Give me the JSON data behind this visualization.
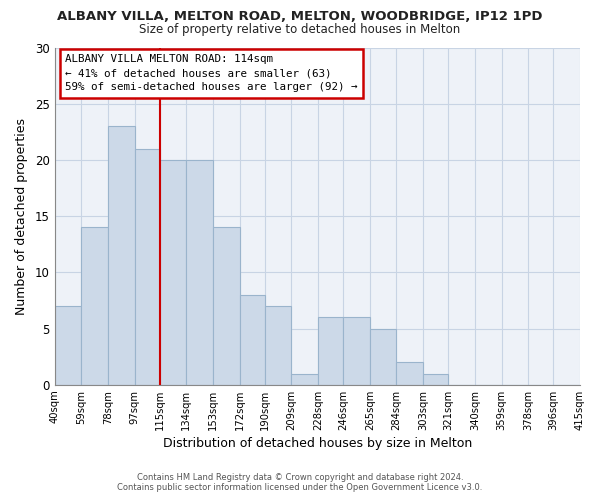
{
  "title": "ALBANY VILLA, MELTON ROAD, MELTON, WOODBRIDGE, IP12 1PD",
  "subtitle": "Size of property relative to detached houses in Melton",
  "xlabel": "Distribution of detached houses by size in Melton",
  "ylabel": "Number of detached properties",
  "bar_color": "#ccd9e8",
  "bar_edge_color": "#9ab4cc",
  "bins": [
    40,
    59,
    78,
    97,
    115,
    134,
    153,
    172,
    190,
    209,
    228,
    246,
    265,
    284,
    303,
    321,
    340,
    359,
    378,
    396,
    415
  ],
  "counts": [
    7,
    14,
    23,
    21,
    20,
    20,
    14,
    8,
    7,
    1,
    6,
    6,
    5,
    2,
    1,
    0,
    0,
    0,
    0,
    0
  ],
  "tick_labels": [
    "40sqm",
    "59sqm",
    "78sqm",
    "97sqm",
    "115sqm",
    "134sqm",
    "153sqm",
    "172sqm",
    "190sqm",
    "209sqm",
    "228sqm",
    "246sqm",
    "265sqm",
    "284sqm",
    "303sqm",
    "321sqm",
    "340sqm",
    "359sqm",
    "378sqm",
    "396sqm",
    "415sqm"
  ],
  "property_line_x": 115,
  "annotation_title": "ALBANY VILLA MELTON ROAD: 114sqm",
  "annotation_line1": "← 41% of detached houses are smaller (63)",
  "annotation_line2": "59% of semi-detached houses are larger (92) →",
  "ylim": [
    0,
    30
  ],
  "yticks": [
    0,
    5,
    10,
    15,
    20,
    25,
    30
  ],
  "footer1": "Contains HM Land Registry data © Crown copyright and database right 2024.",
  "footer2": "Contains public sector information licensed under the Open Government Licence v3.0.",
  "bg_color": "#ffffff",
  "plot_bg_color": "#eef2f8",
  "grid_color": "#c8d4e4",
  "annotation_box_color": "#ffffff",
  "annotation_box_edge": "#cc0000",
  "property_line_color": "#cc0000"
}
